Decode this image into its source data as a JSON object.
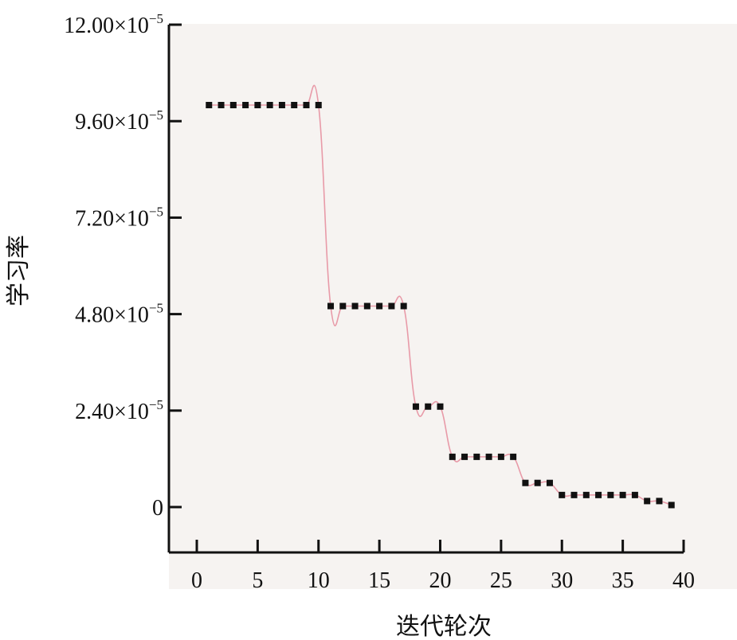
{
  "chart_data": {
    "type": "line",
    "title": "",
    "xlabel": "迭代轮次",
    "ylabel": "学习率",
    "x_ticks": [
      "0",
      "5",
      "10",
      "15",
      "20",
      "25",
      "30",
      "35",
      "40"
    ],
    "y_ticks": [
      {
        "value": 0.00012,
        "mantissa": "12.00",
        "base": "×10",
        "exp": "−5"
      },
      {
        "value": 9.6e-05,
        "mantissa": "9.60",
        "base": "×10",
        "exp": "−5"
      },
      {
        "value": 7.2e-05,
        "mantissa": "7.20",
        "base": "×10",
        "exp": "−5"
      },
      {
        "value": 4.8e-05,
        "mantissa": "4.80",
        "base": "×10",
        "exp": "−5"
      },
      {
        "value": 2.4e-05,
        "mantissa": "2.40",
        "base": "×10",
        "exp": "−5"
      },
      {
        "value": 0,
        "mantissa": "0",
        "base": "",
        "exp": ""
      }
    ],
    "xlim": [
      -2,
      40
    ],
    "ylim": [
      -1.12e-05,
      0.00012
    ],
    "grid": false,
    "series": [
      {
        "marker_color": "#111111",
        "line_color": "#e89aa8",
        "x": [
          1,
          2,
          3,
          4,
          5,
          6,
          7,
          8,
          9,
          10,
          11,
          12,
          13,
          14,
          15,
          16,
          17,
          18,
          19,
          20,
          21,
          22,
          23,
          24,
          25,
          26,
          27,
          28,
          29,
          30,
          31,
          32,
          33,
          34,
          35,
          36,
          37,
          38,
          39
        ],
        "y": [
          0.0001,
          0.0001,
          0.0001,
          0.0001,
          0.0001,
          0.0001,
          0.0001,
          0.0001,
          0.0001,
          0.0001,
          5e-05,
          5e-05,
          5e-05,
          5e-05,
          5e-05,
          5e-05,
          5e-05,
          2.5e-05,
          2.5e-05,
          2.5e-05,
          1.25e-05,
          1.25e-05,
          1.25e-05,
          1.25e-05,
          1.25e-05,
          1.25e-05,
          6e-06,
          6e-06,
          6e-06,
          3e-06,
          3e-06,
          3e-06,
          3e-06,
          3e-06,
          3e-06,
          3e-06,
          1.5e-06,
          1.5e-06,
          5e-07
        ]
      }
    ]
  }
}
